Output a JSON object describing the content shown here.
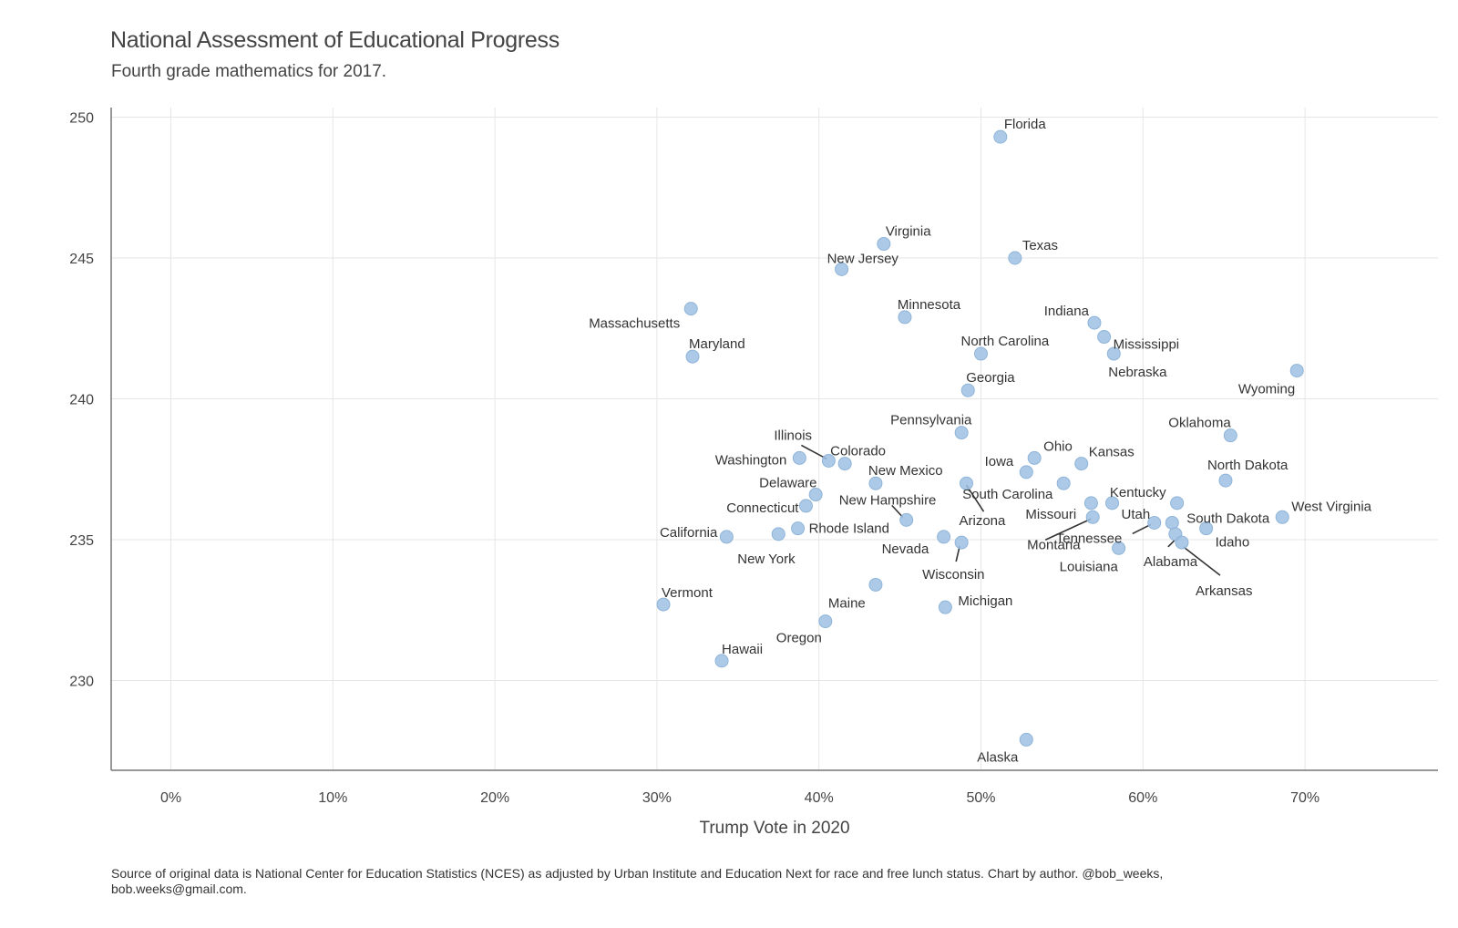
{
  "chart_data": {
    "type": "scatter",
    "title": "National Assessment of Educational Progress",
    "subtitle": "Fourth grade mathematics for 2017.",
    "xlabel": "Trump Vote in 2020",
    "ylabel": "",
    "x_ticks": [
      "0%",
      "10%",
      "20%",
      "30%",
      "40%",
      "50%",
      "60%",
      "70%"
    ],
    "y_ticks": [
      "230",
      "235",
      "240",
      "245",
      "250"
    ],
    "xlim": [
      -3.8,
      78
    ],
    "ylim": [
      226.9,
      250.1
    ],
    "grid": true,
    "point_color": "#9dc1e3",
    "caption": "Source of original data is National Center for Education Statistics (NCES) as adjusted by Urban Institute and Education Next for race and free lunch status. Chart by author. @bob_weeks, bob.weeks@gmail.com.",
    "points": [
      {
        "label": "Florida",
        "x": 51.2,
        "y": 249.3
      },
      {
        "label": "Virginia",
        "x": 44.0,
        "y": 245.5
      },
      {
        "label": "Texas",
        "x": 52.1,
        "y": 245.0
      },
      {
        "label": "New Jersey",
        "x": 41.4,
        "y": 244.6
      },
      {
        "label": "Massachusetts",
        "x": 32.1,
        "y": 243.2
      },
      {
        "label": "Minnesota",
        "x": 45.3,
        "y": 242.9
      },
      {
        "label": "Indiana",
        "x": 57.0,
        "y": 242.7
      },
      {
        "label": "Mississippi",
        "x": 57.6,
        "y": 242.2
      },
      {
        "label": "North Carolina",
        "x": 50.0,
        "y": 241.6
      },
      {
        "label": "Nebraska",
        "x": 58.2,
        "y": 241.6
      },
      {
        "label": "Maryland",
        "x": 32.2,
        "y": 241.5
      },
      {
        "label": "Wyoming",
        "x": 69.5,
        "y": 241.0
      },
      {
        "label": "Georgia",
        "x": 49.2,
        "y": 240.3
      },
      {
        "label": "Pennsylvania",
        "x": 48.8,
        "y": 238.8
      },
      {
        "label": "Oklahoma",
        "x": 65.4,
        "y": 238.7
      },
      {
        "label": "Washington",
        "x": 38.8,
        "y": 237.9
      },
      {
        "label": "Ohio",
        "x": 53.3,
        "y": 237.9
      },
      {
        "label": "Illinois",
        "x": 40.6,
        "y": 237.8
      },
      {
        "label": "Colorado",
        "x": 41.6,
        "y": 237.7
      },
      {
        "label": "Kansas",
        "x": 56.2,
        "y": 237.7
      },
      {
        "label": "Iowa",
        "x": 52.8,
        "y": 237.4
      },
      {
        "label": "North Dakota",
        "x": 65.1,
        "y": 237.1
      },
      {
        "label": "South Carolina",
        "x": 55.1,
        "y": 237.0
      },
      {
        "label": "New Mexico",
        "x": 43.5,
        "y": 237.0
      },
      {
        "label": "Arizona",
        "x": 49.1,
        "y": 237.0
      },
      {
        "label": "Delaware",
        "x": 39.8,
        "y": 236.6
      },
      {
        "label": "Kentucky",
        "x": 62.1,
        "y": 236.3
      },
      {
        "label": "Missouri",
        "x": 56.8,
        "y": 236.3
      },
      {
        "label": "Utah",
        "x": 58.1,
        "y": 236.3
      },
      {
        "label": "Connecticut",
        "x": 39.2,
        "y": 236.2
      },
      {
        "label": "Montana",
        "x": 56.9,
        "y": 235.8
      },
      {
        "label": "West Virginia",
        "x": 68.6,
        "y": 235.8
      },
      {
        "label": "New Hampshire",
        "x": 45.4,
        "y": 235.7
      },
      {
        "label": "South Dakota",
        "x": 61.8,
        "y": 235.6
      },
      {
        "label": "Tennessee",
        "x": 60.7,
        "y": 235.6
      },
      {
        "label": "Idaho",
        "x": 63.9,
        "y": 235.4
      },
      {
        "label": "Rhode Island",
        "x": 38.7,
        "y": 235.4
      },
      {
        "label": "Alabama",
        "x": 62.0,
        "y": 235.2
      },
      {
        "label": "New York",
        "x": 37.5,
        "y": 235.2
      },
      {
        "label": "California",
        "x": 34.3,
        "y": 235.1
      },
      {
        "label": "Nevada",
        "x": 47.7,
        "y": 235.1
      },
      {
        "label": "Wisconsin",
        "x": 48.8,
        "y": 234.9
      },
      {
        "label": "Arkansas",
        "x": 62.4,
        "y": 234.9
      },
      {
        "label": "Louisiana",
        "x": 58.5,
        "y": 234.7
      },
      {
        "label": "Maine",
        "x": 43.5,
        "y": 233.4
      },
      {
        "label": "Vermont",
        "x": 30.4,
        "y": 232.7
      },
      {
        "label": "Michigan",
        "x": 47.8,
        "y": 232.6
      },
      {
        "label": "Oregon",
        "x": 40.4,
        "y": 232.1
      },
      {
        "label": "Hawaii",
        "x": 34.0,
        "y": 230.7
      },
      {
        "label": "Alaska",
        "x": 52.8,
        "y": 227.9
      }
    ]
  }
}
